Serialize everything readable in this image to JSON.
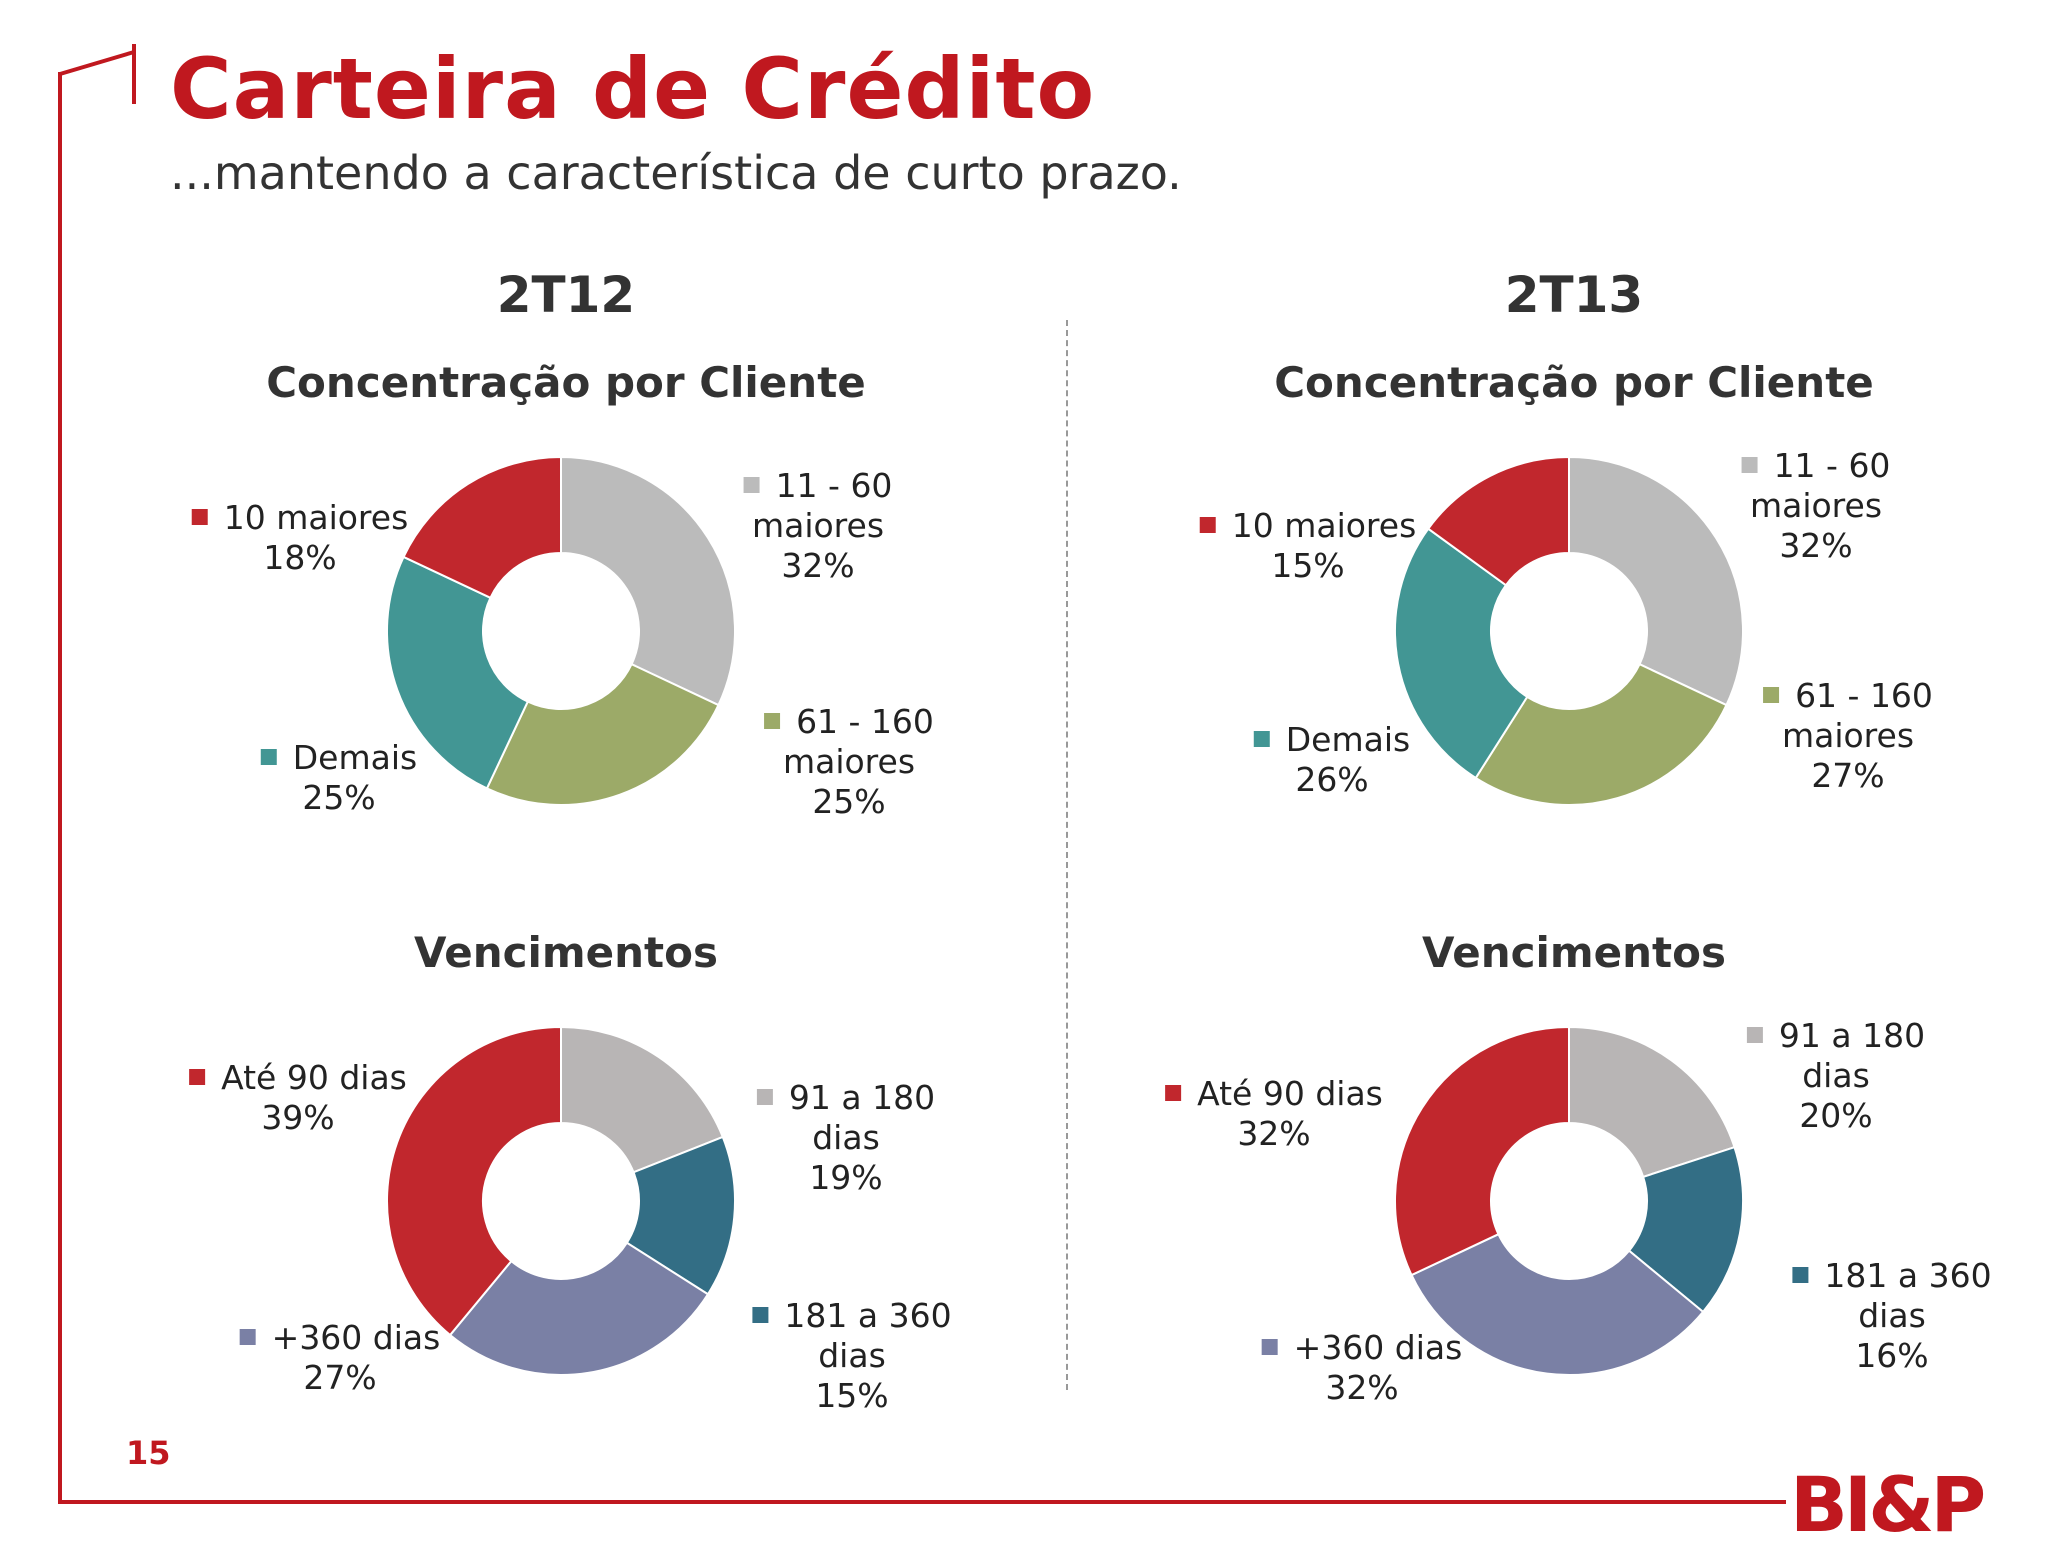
{
  "header": {
    "title": "Carteira de Crédito",
    "subtitle": "...mantendo a característica de curto prazo."
  },
  "periods": [
    "2T12",
    "2T13"
  ],
  "colors": {
    "brand": "#c0181f",
    "red": "#c1272d",
    "gray": "#bbbbbb",
    "olive": "#9caa68",
    "teal": "#429694",
    "lavender": "#7a80a5",
    "petrol": "#336e85",
    "lightgray": "#b8b5b5"
  },
  "chart_data": [
    {
      "type": "pie",
      "title": "Concentração por Cliente",
      "period": "2T12",
      "slices": [
        {
          "label": [
            "11 - 60",
            "maiores"
          ],
          "value": 32,
          "display": "32%",
          "color": "#bbbbbb"
        },
        {
          "label": [
            "61 - 160",
            "maiores"
          ],
          "value": 25,
          "display": "25%",
          "color": "#9caa68"
        },
        {
          "label": [
            "Demais"
          ],
          "value": 25,
          "display": "25%",
          "color": "#429694"
        },
        {
          "label": [
            "10 maiores"
          ],
          "value": 18,
          "display": "18%",
          "color": "#c1272d"
        }
      ]
    },
    {
      "type": "pie",
      "title": "Concentração por Cliente",
      "period": "2T13",
      "slices": [
        {
          "label": [
            "11 - 60",
            "maiores"
          ],
          "value": 32,
          "display": "32%",
          "color": "#bbbbbb"
        },
        {
          "label": [
            "61 - 160",
            "maiores"
          ],
          "value": 27,
          "display": "27%",
          "color": "#9caa68"
        },
        {
          "label": [
            "Demais"
          ],
          "value": 26,
          "display": "26%",
          "color": "#429694"
        },
        {
          "label": [
            "10 maiores"
          ],
          "value": 15,
          "display": "15%",
          "color": "#c1272d"
        }
      ]
    },
    {
      "type": "pie",
      "title": "Vencimentos",
      "period": "2T12",
      "slices": [
        {
          "label": [
            "91 a 180",
            "dias"
          ],
          "value": 19,
          "display": "19%",
          "color": "#b8b5b5"
        },
        {
          "label": [
            "181 a 360",
            "dias"
          ],
          "value": 15,
          "display": "15%",
          "color": "#336e85"
        },
        {
          "label": [
            "+360 dias"
          ],
          "value": 27,
          "display": "27%",
          "color": "#7a80a5"
        },
        {
          "label": [
            "Até 90 dias"
          ],
          "value": 39,
          "display": "39%",
          "color": "#c1272d"
        }
      ]
    },
    {
      "type": "pie",
      "title": "Vencimentos",
      "period": "2T13",
      "slices": [
        {
          "label": [
            "91 a 180",
            "dias"
          ],
          "value": 20,
          "display": "20%",
          "color": "#b8b5b5"
        },
        {
          "label": [
            "181 a 360",
            "dias"
          ],
          "value": 16,
          "display": "16%",
          "color": "#336e85"
        },
        {
          "label": [
            "+360 dias"
          ],
          "value": 32,
          "display": "32%",
          "color": "#7a80a5"
        },
        {
          "label": [
            "Até 90 dias"
          ],
          "value": 32,
          "display": "32%",
          "color": "#c1272d"
        }
      ]
    }
  ],
  "footer": {
    "page_number": "15",
    "logo": "BI&P"
  }
}
